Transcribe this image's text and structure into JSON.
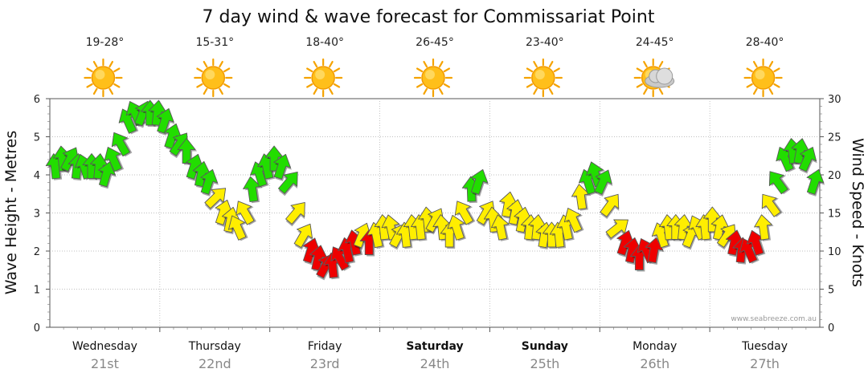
{
  "chart_data": {
    "type": "line",
    "title": "7 day wind & wave forecast for Commissariat Point",
    "ylabel_left": "Wave Height - Metres",
    "ylabel_right": "Wind Speed - Knots",
    "ylim_left": [
      0,
      6
    ],
    "ylim_right": [
      0,
      30
    ],
    "yticks_left": [
      "0",
      "1",
      "2",
      "3",
      "4",
      "5",
      "6"
    ],
    "yticks_right": [
      "0",
      "5",
      "10",
      "15",
      "20",
      "25",
      "30"
    ],
    "grid": true,
    "credit": "www.seabreeze.com.au",
    "days": [
      {
        "name": "Wednesday",
        "date": "21st",
        "temp": "19-28°",
        "icon": "sun-icon",
        "bold": false
      },
      {
        "name": "Thursday",
        "date": "22nd",
        "temp": "15-31°",
        "icon": "sun-icon",
        "bold": false
      },
      {
        "name": "Friday",
        "date": "23rd",
        "temp": "18-40°",
        "icon": "sun-icon",
        "bold": false
      },
      {
        "name": "Saturday",
        "date": "24th",
        "temp": "26-45°",
        "icon": "sun-icon",
        "bold": true
      },
      {
        "name": "Sunday",
        "date": "25th",
        "temp": "23-40°",
        "icon": "sun-icon",
        "bold": true
      },
      {
        "name": "Monday",
        "date": "26th",
        "temp": "24-45°",
        "icon": "partly-cloudy-icon",
        "bold": false
      },
      {
        "name": "Tuesday",
        "date": "27th",
        "temp": "28-40°",
        "icon": "sun-icon",
        "bold": false
      }
    ],
    "wind_series": {
      "name": "Wind Speed (knots)",
      "unit_interval_hours": 3,
      "values": [
        21,
        22,
        22,
        21,
        21,
        21,
        21,
        20,
        22,
        24,
        27,
        28,
        28,
        28,
        28,
        27,
        25,
        24,
        23,
        21,
        20,
        19,
        17,
        15,
        14,
        13,
        15,
        18,
        20,
        21,
        22,
        21,
        19,
        15,
        12,
        10,
        9,
        8,
        8,
        9,
        10,
        11,
        12,
        11,
        12,
        13,
        13,
        12,
        12,
        13,
        13,
        14,
        14,
        13,
        12,
        13,
        15,
        18,
        19,
        15,
        14,
        13,
        16,
        15,
        14,
        13,
        13,
        12,
        12,
        12,
        13,
        14,
        17,
        19,
        20,
        19,
        16,
        13,
        11,
        10,
        9,
        10,
        10,
        12,
        13,
        13,
        13,
        12,
        13,
        13,
        14,
        13,
        12,
        11,
        10,
        10,
        11,
        13,
        16,
        19,
        22,
        23,
        23,
        22,
        19
      ],
      "colors": {
        "green": "#22dd00",
        "yellow": "#ffee00",
        "red": "#ee0000"
      },
      "thresholds": {
        "red_below": 12,
        "green_at_or_above": 18
      }
    }
  }
}
